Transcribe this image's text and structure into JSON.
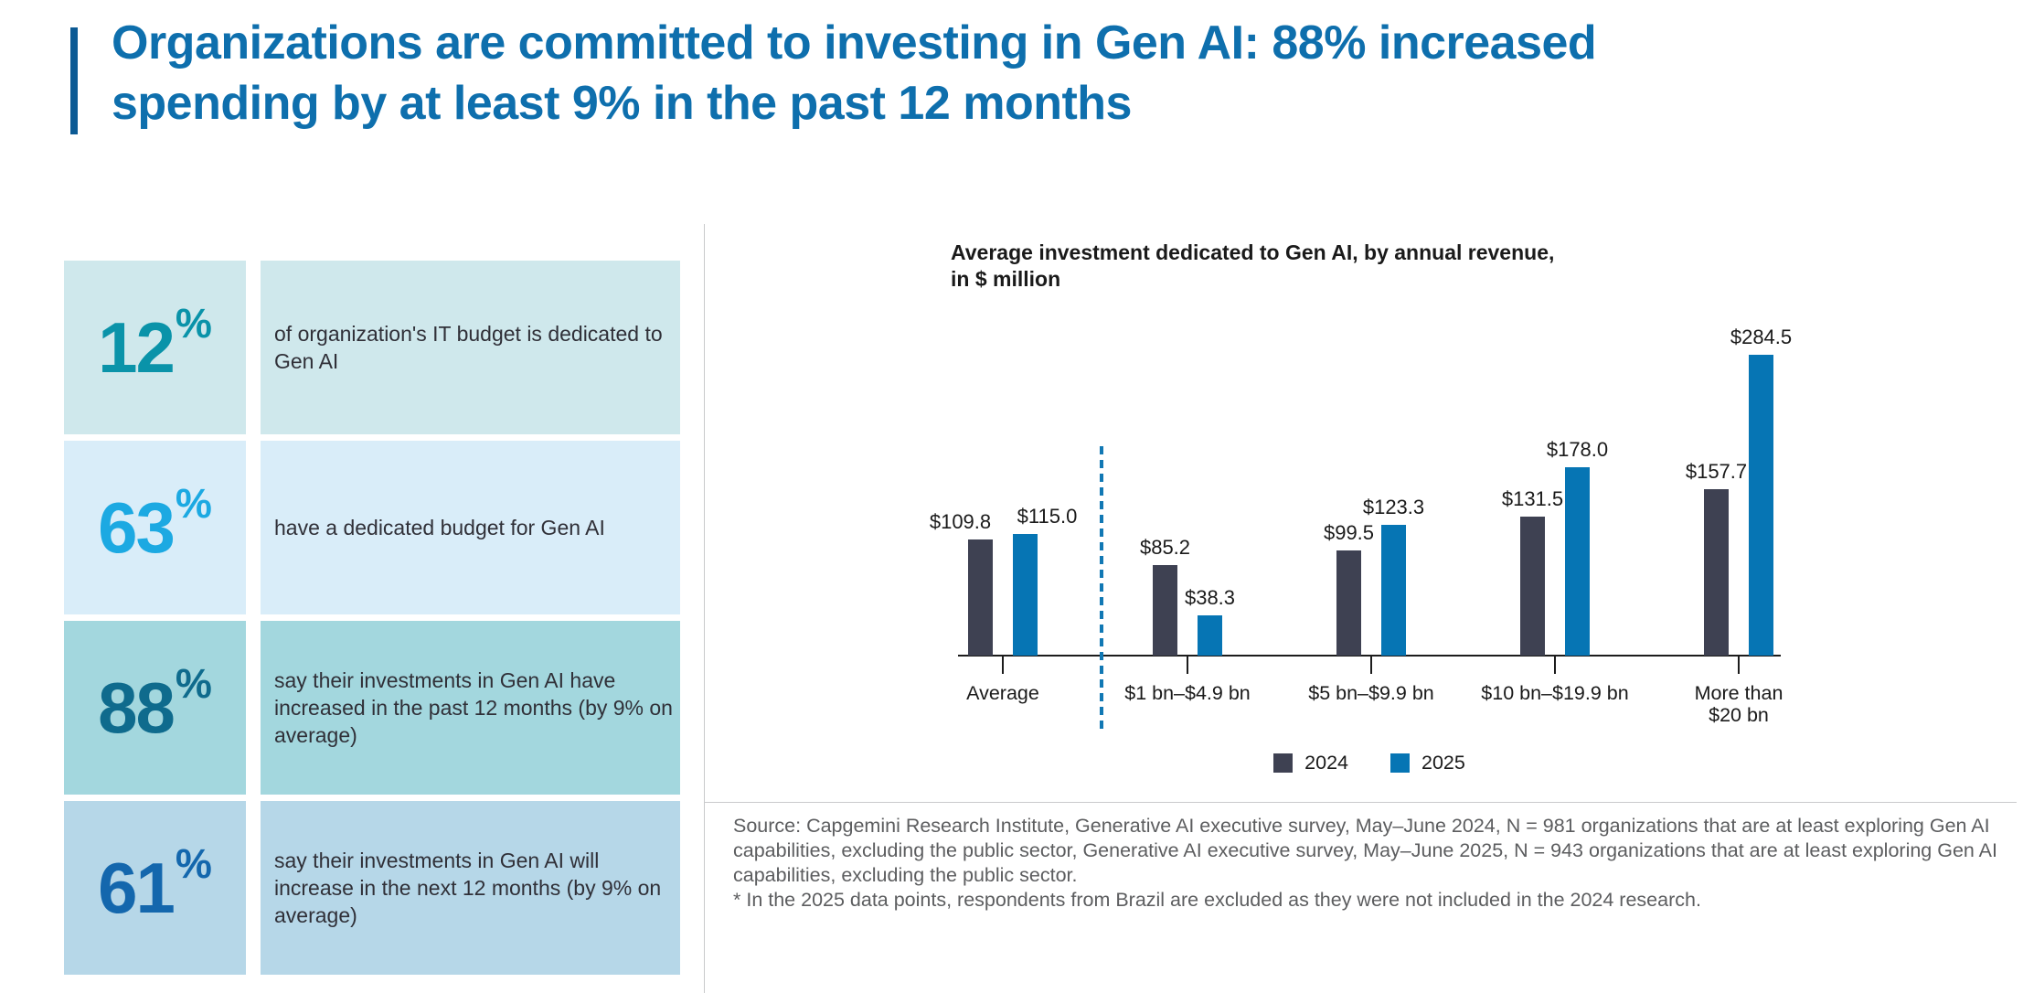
{
  "header": {
    "title_line1": "Organizations are committed to investing in Gen AI: 88% increased",
    "title_line2": "spending by at least 9% in the past 12 months",
    "title_color": "#0e6fad",
    "accent_color": "#0c5a94"
  },
  "stats": {
    "rows": [
      {
        "value": "12",
        "unit": "%",
        "text": "of organization's IT budget is dedicated to Gen AI",
        "bg": "#cfe8ec",
        "value_color": "#0a93a9"
      },
      {
        "value": "63",
        "unit": "%",
        "text": "have a dedicated budget for Gen AI",
        "bg": "#d9edf9",
        "value_color": "#1ca9e2"
      },
      {
        "value": "88",
        "unit": "%",
        "text": "say their investments in Gen AI have increased in the past 12 months (by 9% on average)",
        "bg": "#a3d7de",
        "value_color": "#0f6b8d"
      },
      {
        "value": "61",
        "unit": "%",
        "text": "say their investments in Gen AI will increase in the next 12 months (by 9% on average)",
        "bg": "#b6d7e8",
        "value_color": "#1467ad"
      }
    ]
  },
  "chart": {
    "title_line1": "Average investment dedicated to Gen AI, by annual revenue,",
    "title_line2": "in $ million"
  },
  "chart_data": {
    "type": "bar",
    "title": "Average investment dedicated to Gen AI, by annual revenue, in $ million",
    "categories": [
      "Average",
      "$1 bn–$4.9 bn",
      "$5 bn–$9.9 bn",
      "$10 bn–$19.9 bn",
      "More than $20 bn"
    ],
    "series": [
      {
        "name": "2024",
        "color": "#3e4152",
        "values": [
          109.8,
          85.2,
          99.5,
          131.5,
          157.7
        ],
        "value_labels": [
          "$109.8",
          "$85.2",
          "$99.5",
          "$131.5",
          "$157.7"
        ]
      },
      {
        "name": "2025",
        "color": "#0675b4",
        "values": [
          115.0,
          38.3,
          123.3,
          178.0,
          284.5
        ],
        "value_labels": [
          "$115.0",
          "$38.3",
          "$123.3",
          "$178.0",
          "$284.5"
        ]
      }
    ],
    "value_prefix": "$",
    "ylabel": "",
    "xlabel": "",
    "ylim": [
      0,
      300
    ],
    "grid": false,
    "legend_position": "bottom",
    "separator_after_category": "Average",
    "separator_style": "dashed",
    "separator_color": "#1178b4",
    "axis_color": "#1c1c1c"
  },
  "footer": {
    "source": "Source: Capgemini Research Institute, Generative AI executive survey, May–June 2024, N = 981 organizations that are at least exploring Gen AI capabilities, excluding the public sector, Generative AI executive survey, May–June 2025, N = 943 organizations that are at least exploring Gen AI capabilities, excluding the public sector.",
    "footnote": "* In the 2025 data points, respondents from Brazil are excluded as they were not included in the 2024 research."
  }
}
